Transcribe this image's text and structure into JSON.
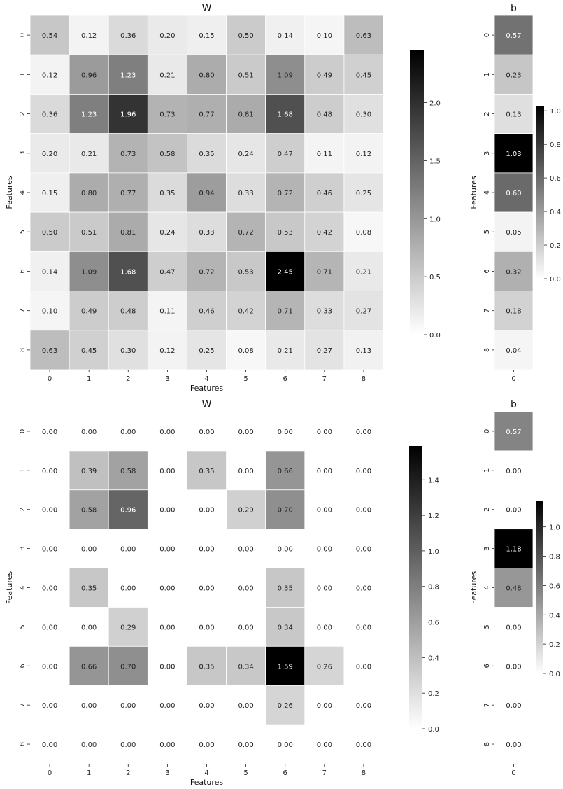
{
  "chart_data": [
    {
      "type": "heatmap",
      "title": "W",
      "xlabel": "Features",
      "ylabel": "Features",
      "x_ticks": [
        "0",
        "1",
        "2",
        "3",
        "4",
        "5",
        "6",
        "7",
        "8"
      ],
      "y_ticks": [
        "0",
        "1",
        "2",
        "3",
        "4",
        "5",
        "6",
        "7",
        "8"
      ],
      "values": [
        [
          0.54,
          0.12,
          0.36,
          0.2,
          0.15,
          0.5,
          0.14,
          0.1,
          0.63
        ],
        [
          0.12,
          0.96,
          1.23,
          0.21,
          0.8,
          0.51,
          1.09,
          0.49,
          0.45
        ],
        [
          0.36,
          1.23,
          1.96,
          0.73,
          0.77,
          0.81,
          1.68,
          0.48,
          0.3
        ],
        [
          0.2,
          0.21,
          0.73,
          0.58,
          0.35,
          0.24,
          0.47,
          0.11,
          0.12
        ],
        [
          0.15,
          0.8,
          0.77,
          0.35,
          0.94,
          0.33,
          0.72,
          0.46,
          0.25
        ],
        [
          0.5,
          0.51,
          0.81,
          0.24,
          0.33,
          0.72,
          0.53,
          0.42,
          0.08
        ],
        [
          0.14,
          1.09,
          1.68,
          0.47,
          0.72,
          0.53,
          2.45,
          0.71,
          0.21
        ],
        [
          0.1,
          0.49,
          0.48,
          0.11,
          0.46,
          0.42,
          0.71,
          0.33,
          0.27
        ],
        [
          0.63,
          0.45,
          0.3,
          0.12,
          0.25,
          0.08,
          0.21,
          0.27,
          0.13
        ]
      ],
      "hide_zero_cells": false,
      "colormap": "white-to-black",
      "colorbar": {
        "vmin": 0,
        "vmax": 2.45,
        "ticks": [
          "0.0",
          "0.5",
          "1.0",
          "1.5",
          "2.0"
        ],
        "tick_values": [
          0,
          0.5,
          1.0,
          1.5,
          2.0
        ]
      }
    },
    {
      "type": "heatmap",
      "title": "b",
      "xlabel": "",
      "ylabel": "Features",
      "x_ticks": [
        "0"
      ],
      "y_ticks": [
        "0",
        "1",
        "2",
        "3",
        "4",
        "5",
        "6",
        "7",
        "8"
      ],
      "values": [
        [
          0.57
        ],
        [
          0.23
        ],
        [
          0.13
        ],
        [
          1.03
        ],
        [
          0.6
        ],
        [
          0.05
        ],
        [
          0.32
        ],
        [
          0.18
        ],
        [
          0.04
        ]
      ],
      "hide_zero_cells": false,
      "colormap": "white-to-black",
      "colorbar": {
        "vmin": 0,
        "vmax": 1.03,
        "ticks": [
          "0.0",
          "0.2",
          "0.4",
          "0.6",
          "0.8",
          "1.0"
        ],
        "tick_values": [
          0,
          0.2,
          0.4,
          0.6,
          0.8,
          1.0
        ]
      }
    },
    {
      "type": "heatmap",
      "title": "W",
      "xlabel": "Features",
      "ylabel": "Features",
      "x_ticks": [
        "0",
        "1",
        "2",
        "3",
        "4",
        "5",
        "6",
        "7",
        "8"
      ],
      "y_ticks": [
        "0",
        "1",
        "2",
        "3",
        "4",
        "5",
        "6",
        "7",
        "8"
      ],
      "values": [
        [
          0.0,
          0.0,
          0.0,
          0.0,
          0.0,
          0.0,
          0.0,
          0.0,
          0.0
        ],
        [
          0.0,
          0.39,
          0.58,
          0.0,
          0.35,
          0.0,
          0.66,
          0.0,
          0.0
        ],
        [
          0.0,
          0.58,
          0.96,
          0.0,
          0.0,
          0.29,
          0.7,
          0.0,
          0.0
        ],
        [
          0.0,
          0.0,
          0.0,
          0.0,
          0.0,
          0.0,
          0.0,
          0.0,
          0.0
        ],
        [
          0.0,
          0.35,
          0.0,
          0.0,
          0.0,
          0.0,
          0.35,
          0.0,
          0.0
        ],
        [
          0.0,
          0.0,
          0.29,
          0.0,
          0.0,
          0.0,
          0.34,
          0.0,
          0.0
        ],
        [
          0.0,
          0.66,
          0.7,
          0.0,
          0.35,
          0.34,
          1.59,
          0.26,
          0.0
        ],
        [
          0.0,
          0.0,
          0.0,
          0.0,
          0.0,
          0.0,
          0.26,
          0.0,
          0.0
        ],
        [
          0.0,
          0.0,
          0.0,
          0.0,
          0.0,
          0.0,
          0.0,
          0.0,
          0.0
        ]
      ],
      "hide_zero_cells": true,
      "colormap": "white-to-black",
      "colorbar": {
        "vmin": 0,
        "vmax": 1.59,
        "ticks": [
          "0.0",
          "0.2",
          "0.4",
          "0.6",
          "0.8",
          "1.0",
          "1.2",
          "1.4"
        ],
        "tick_values": [
          0,
          0.2,
          0.4,
          0.6,
          0.8,
          1.0,
          1.2,
          1.4
        ]
      }
    },
    {
      "type": "heatmap",
      "title": "b",
      "xlabel": "",
      "ylabel": "Features",
      "x_ticks": [
        "0"
      ],
      "y_ticks": [
        "0",
        "1",
        "2",
        "3",
        "4",
        "5",
        "6",
        "7",
        "8"
      ],
      "values": [
        [
          0.57
        ],
        [
          0.0
        ],
        [
          0.0
        ],
        [
          1.18
        ],
        [
          0.48
        ],
        [
          0.0
        ],
        [
          0.0
        ],
        [
          0.0
        ],
        [
          0.0
        ]
      ],
      "hide_zero_cells": true,
      "colormap": "white-to-black",
      "colorbar": {
        "vmin": 0,
        "vmax": 1.18,
        "ticks": [
          "0.0",
          "0.2",
          "0.4",
          "0.6",
          "0.8",
          "1.0"
        ],
        "tick_values": [
          0,
          0.2,
          0.4,
          0.6,
          0.8,
          1.0
        ]
      }
    }
  ]
}
